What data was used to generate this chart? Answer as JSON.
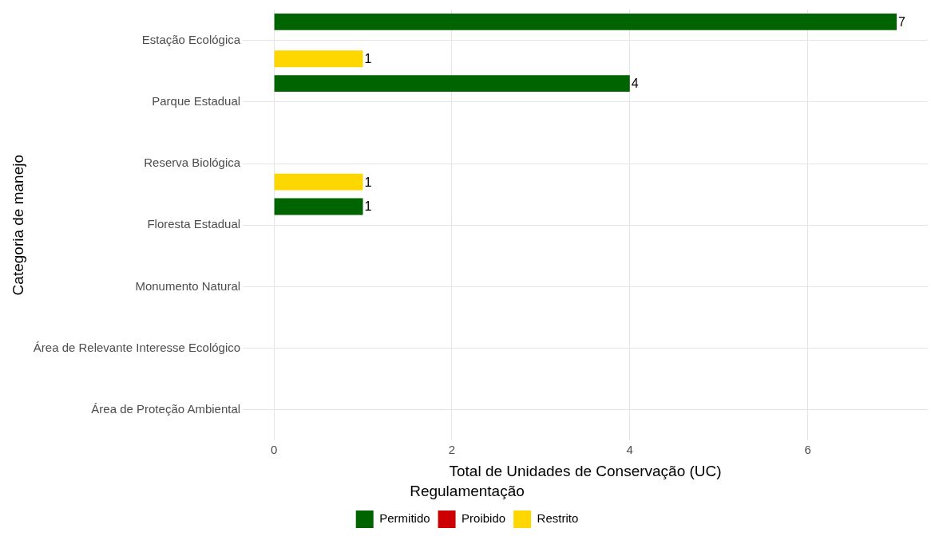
{
  "chart_data": {
    "type": "bar",
    "orientation": "horizontal",
    "xlabel": "Total de Unidades de Conservação (UC)",
    "ylabel": "Categoria de manejo",
    "legend_title": "Regulamentação",
    "categories": [
      "Estação Ecológica",
      "Parque Estadual",
      "Reserva Biológica",
      "Floresta Estadual",
      "Monumento Natural",
      "Área de Relevante Interesse Ecológico",
      "Área de Proteção Ambiental"
    ],
    "series": [
      {
        "name": "Permitido",
        "color": "#006400",
        "values": [
          7,
          4,
          null,
          1,
          null,
          null,
          null
        ]
      },
      {
        "name": "Proibido",
        "color": "#cc0000",
        "values": [
          null,
          null,
          null,
          null,
          null,
          null,
          null
        ]
      },
      {
        "name": "Restrito",
        "color": "#ffd700",
        "values": [
          1,
          null,
          1,
          null,
          null,
          null,
          null
        ]
      }
    ],
    "xlim": [
      -0.35,
      7.35
    ],
    "xticks": [
      0,
      2,
      4,
      6
    ],
    "grid": true,
    "legend": "bottom",
    "data_labels": true
  }
}
